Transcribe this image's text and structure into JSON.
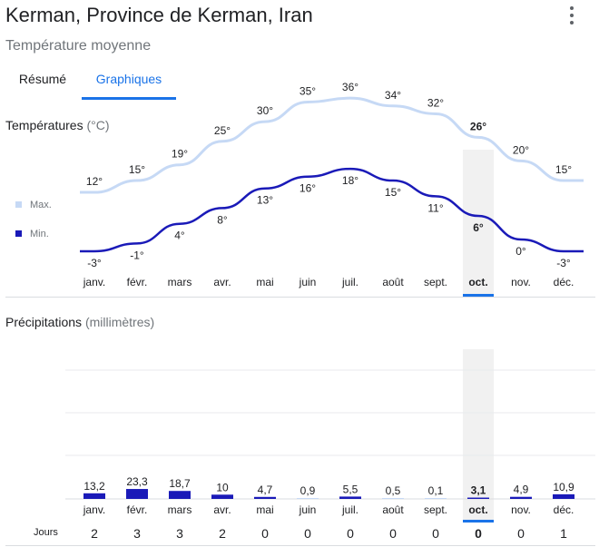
{
  "header": {
    "title": "Kerman, Province de Kerman, Iran",
    "subtitle": "Température moyenne",
    "menu_icon": "more-vert-icon"
  },
  "tabs": [
    {
      "label": "Résumé",
      "selected": false
    },
    {
      "label": "Graphiques",
      "selected": true
    }
  ],
  "colors": {
    "accent": "#1a73e8",
    "max_line": "#c6d9f5",
    "min_line": "#1a1ab8",
    "bar": "#1a1ab8",
    "bar_light": "#c6d9f5",
    "highlight": "#f1f1f1"
  },
  "temperatures": {
    "title": "Températures",
    "unit": "(°C)",
    "legend": {
      "max": "Max.",
      "min": "Min."
    }
  },
  "precipitation": {
    "title": "Précipitations",
    "unit": "(millimètres)",
    "days_label": "Jours"
  },
  "selected_month_index": 9,
  "chart_data": [
    {
      "type": "line",
      "title": "Températures",
      "ylabel": "°C",
      "categories": [
        "janv.",
        "févr.",
        "mars",
        "avr.",
        "mai",
        "juin",
        "juil.",
        "août",
        "sept.",
        "oct.",
        "nov.",
        "déc."
      ],
      "series": [
        {
          "name": "Max.",
          "values": [
            12,
            15,
            19,
            25,
            30,
            35,
            36,
            34,
            32,
            26,
            20,
            15
          ]
        },
        {
          "name": "Min.",
          "values": [
            -3,
            -1,
            4,
            8,
            13,
            16,
            18,
            15,
            11,
            6,
            0,
            -3
          ]
        }
      ]
    },
    {
      "type": "bar",
      "title": "Précipitations",
      "ylabel": "millimètres",
      "categories": [
        "janv.",
        "févr.",
        "mars",
        "avr.",
        "mai",
        "juin",
        "juil.",
        "août",
        "sept.",
        "oct.",
        "nov.",
        "déc."
      ],
      "values": [
        13.2,
        23.3,
        18.7,
        10,
        4.7,
        0.9,
        5.5,
        0.5,
        0.1,
        3.1,
        4.9,
        10.9
      ],
      "value_labels": [
        "13,2",
        "23,3",
        "18,7",
        "10",
        "4,7",
        "0,9",
        "5,5",
        "0,5",
        "0,1",
        "3,1",
        "4,9",
        "10,9"
      ],
      "days": [
        2,
        3,
        3,
        2,
        0,
        0,
        0,
        0,
        0,
        0,
        0,
        1
      ]
    }
  ]
}
